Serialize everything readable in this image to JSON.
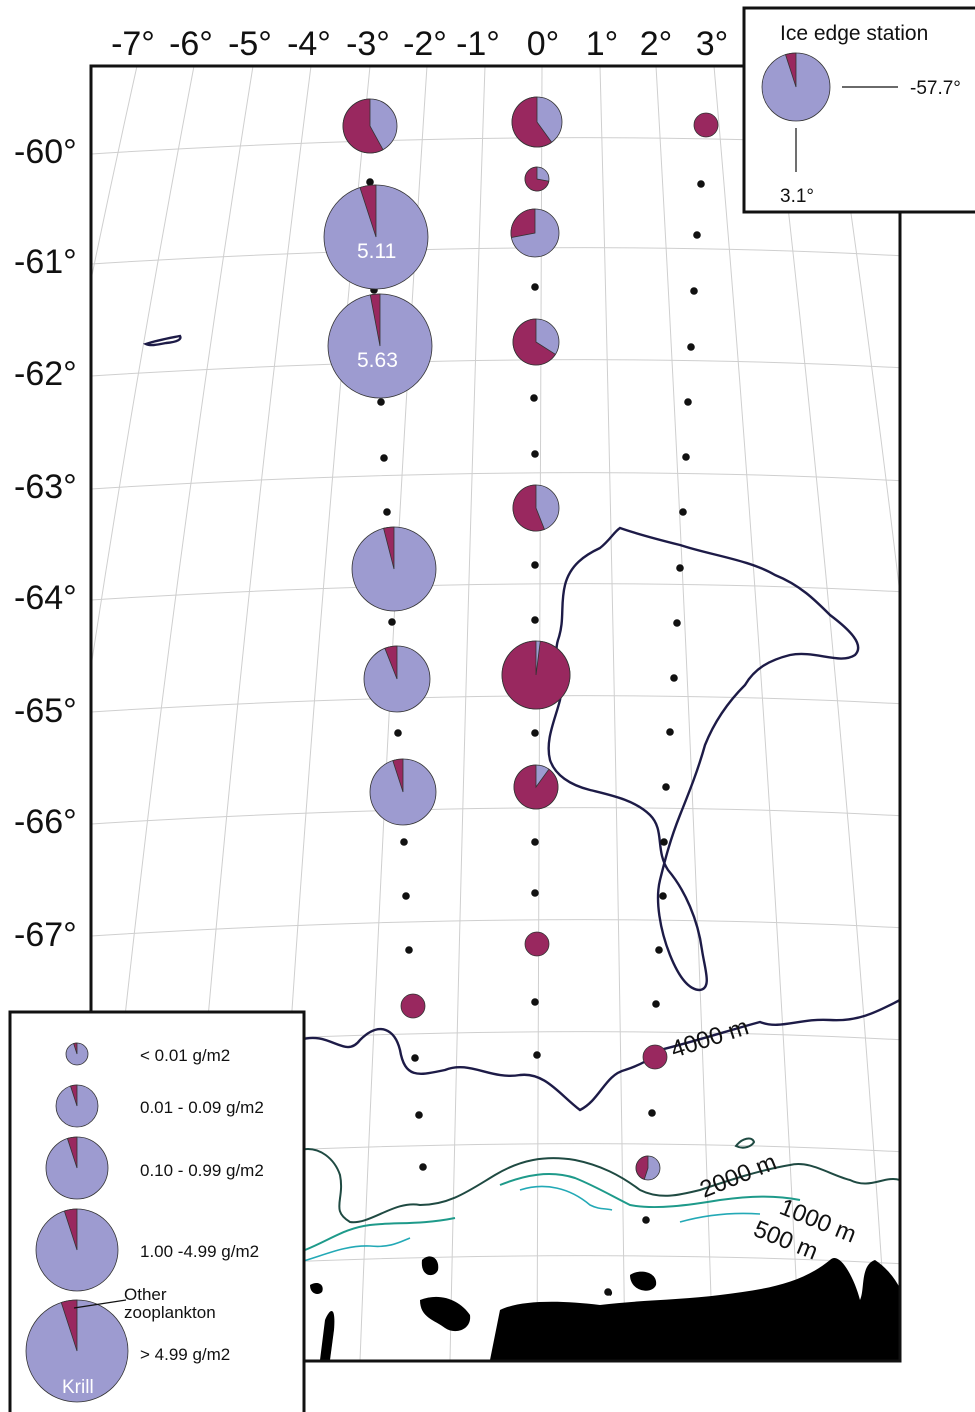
{
  "map": {
    "lon_labels": [
      "-7°",
      "-6°",
      "-5°",
      "-4°",
      "-3°",
      "-2°",
      "-1°",
      "0°",
      "1°",
      "2°",
      "3°"
    ],
    "lat_labels": [
      "-60°",
      "-61°",
      "-62°",
      "-63°",
      "-64°",
      "-65°",
      "-66°",
      "-67°"
    ],
    "contour_labels": {
      "c4000": "4000 m",
      "c2000": "2000 m",
      "c1000": "1000 m",
      "c500": "500 m"
    },
    "value_labels": {
      "west_station_2": "5.11",
      "west_station_3": "5.63"
    },
    "colors": {
      "krill": "#9d9bd0",
      "other_zooplankton": "#99285f",
      "ice_edge": "#1d1b47",
      "land": "#000000"
    }
  },
  "inset": {
    "title": "Ice edge station",
    "lat_value": "-57.7°",
    "lon_value": "3.1°"
  },
  "legend": {
    "classes": [
      "< 0.01 g/m2",
      "0.01 - 0.09 g/m2",
      "0.10 - 0.99 g/m2",
      "1.00 -4.99 g/m2",
      "> 4.99 g/m2"
    ],
    "other_label_1": "Other",
    "other_label_2": "zooplankton",
    "krill_label": "Krill"
  }
}
